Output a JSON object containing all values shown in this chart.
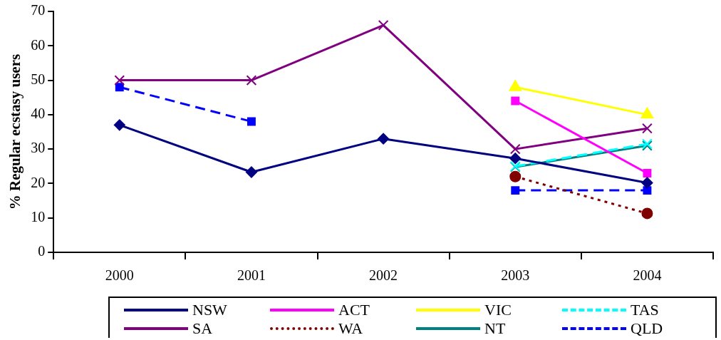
{
  "chart_data": {
    "type": "line",
    "ylabel": "% Regular ecstasy users",
    "categories": [
      "2000",
      "2001",
      "2002",
      "2003",
      "2004"
    ],
    "ylim": [
      0,
      70
    ],
    "yticks": [
      0,
      10,
      20,
      30,
      40,
      50,
      60,
      70
    ],
    "grid": false,
    "legend": "bottom",
    "series": [
      {
        "name": "NSW",
        "color": "#000080",
        "marker": "diamond",
        "line_style": "solid",
        "values": [
          37,
          23.3,
          33,
          27.3,
          20.2
        ]
      },
      {
        "name": "ACT",
        "color": "#ff00ff",
        "marker": "square",
        "line_style": "solid",
        "values": [
          null,
          null,
          null,
          44,
          23
        ]
      },
      {
        "name": "VIC",
        "color": "#ffff00",
        "marker": "triangle",
        "line_style": "solid",
        "values": [
          null,
          null,
          null,
          48,
          40
        ]
      },
      {
        "name": "TAS",
        "color": "#00ffff",
        "marker": "cross",
        "line_style": "dashed",
        "values": [
          null,
          null,
          null,
          25,
          31.5
        ]
      },
      {
        "name": "SA",
        "color": "#800080",
        "marker": "cross",
        "line_style": "solid",
        "values": [
          50,
          50,
          66,
          30,
          36
        ]
      },
      {
        "name": "WA",
        "color": "#800000",
        "marker": "circle",
        "line_style": "dotted",
        "values": [
          null,
          null,
          null,
          22,
          11.3
        ]
      },
      {
        "name": "NT",
        "color": "#008080",
        "marker": "cross",
        "line_style": "solid",
        "values": [
          null,
          null,
          null,
          24.8,
          31
        ]
      },
      {
        "name": "QLD",
        "color": "#0000ff",
        "marker": "square",
        "line_style": "dashed",
        "values": [
          48,
          38,
          null,
          18,
          18
        ]
      }
    ]
  }
}
